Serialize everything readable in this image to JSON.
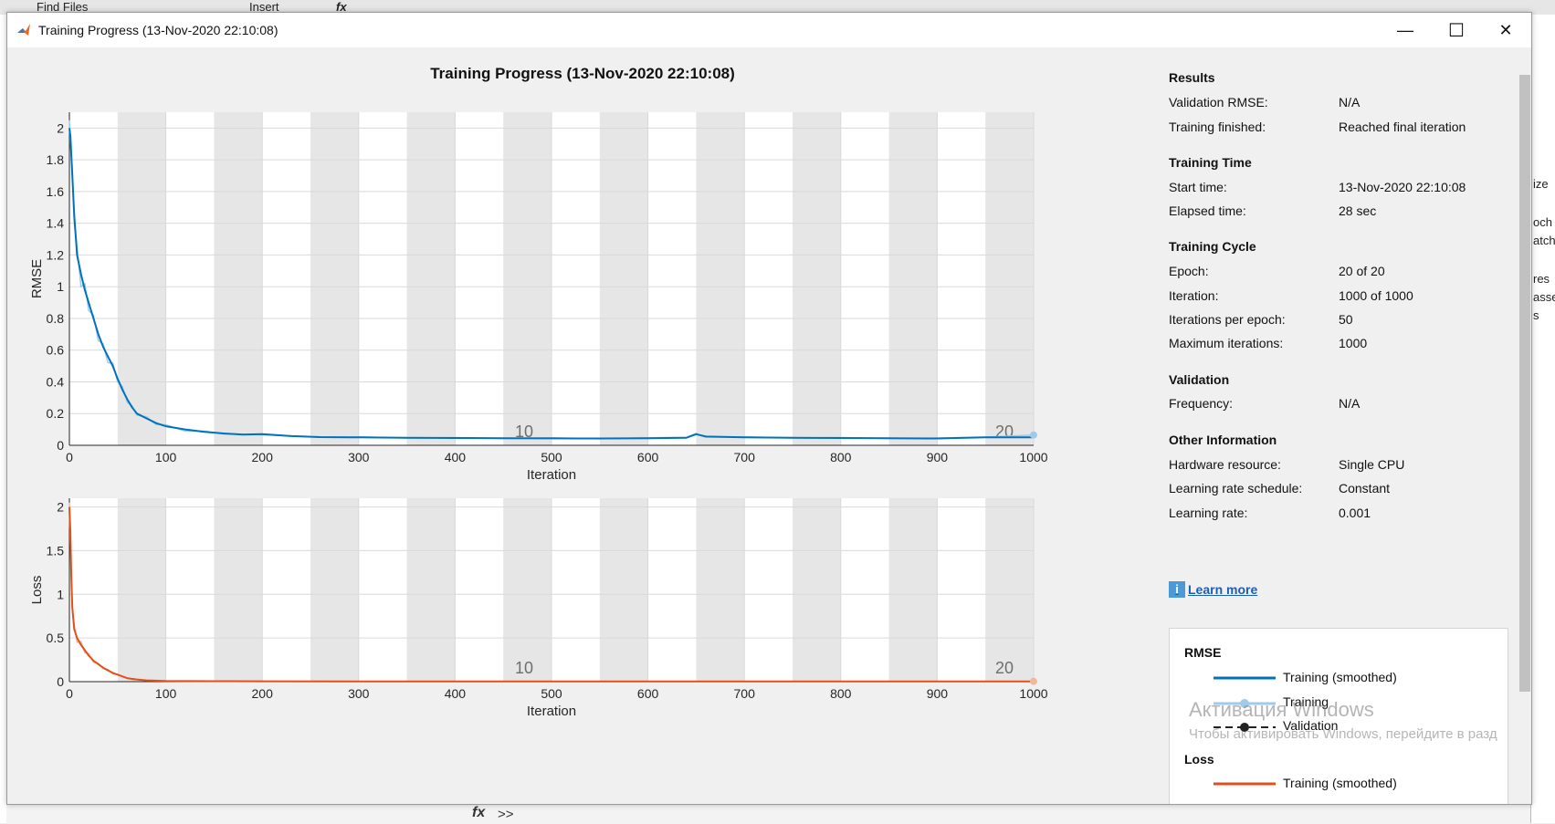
{
  "background": {
    "toolbar": {
      "find_files": "Find Files",
      "insert": "Insert",
      "fx": "fx"
    },
    "right_fragments": [
      "ize",
      "och",
      "atchS",
      "res",
      "asse",
      "s"
    ],
    "command_line": {
      "fx": "fx",
      "prompt": ">>"
    }
  },
  "window": {
    "title": "Training Progress (13-Nov-2020 22:10:08)",
    "controls": {
      "minimize": "—",
      "maximize": "☐",
      "close": "✕"
    }
  },
  "plot_title": "Training Progress (13-Nov-2020 22:10:08)",
  "colors": {
    "rmse_smoothed": "#0072bd",
    "rmse_raw": "#9fcbe8",
    "loss_smoothed": "#e1501b",
    "loss_raw": "#f3b79a",
    "epoch_shade": "#e6e6e6"
  },
  "chart_data": [
    {
      "type": "line",
      "name": "rmse-plot",
      "xlabel": "Iteration",
      "ylabel": "RMSE",
      "xlim": [
        0,
        1000
      ],
      "ylim": [
        0,
        2.1
      ],
      "xticks": [
        0,
        100,
        200,
        300,
        400,
        500,
        600,
        700,
        800,
        900,
        1000
      ],
      "yticks": [
        0,
        0.2,
        0.4,
        0.6,
        0.8,
        1,
        1.2,
        1.4,
        1.6,
        1.8,
        2
      ],
      "grid": true,
      "epoch_markers": [
        {
          "x": 500,
          "label": "10"
        },
        {
          "x": 1000,
          "label": "20"
        }
      ],
      "series": [
        {
          "name": "Training (smoothed)",
          "x": [
            0,
            1,
            3,
            5,
            8,
            12,
            16,
            20,
            25,
            30,
            35,
            40,
            45,
            50,
            55,
            60,
            65,
            70,
            80,
            90,
            100,
            120,
            140,
            160,
            180,
            200,
            230,
            260,
            300,
            350,
            400,
            450,
            500,
            550,
            600,
            640,
            650,
            660,
            700,
            750,
            800,
            850,
            900,
            950,
            1000
          ],
          "y": [
            2.0,
            1.95,
            1.7,
            1.45,
            1.2,
            1.08,
            0.98,
            0.9,
            0.8,
            0.7,
            0.62,
            0.56,
            0.5,
            0.42,
            0.35,
            0.29,
            0.24,
            0.2,
            0.17,
            0.14,
            0.12,
            0.1,
            0.085,
            0.075,
            0.068,
            0.07,
            0.058,
            0.052,
            0.05,
            0.048,
            0.046,
            0.045,
            0.044,
            0.043,
            0.045,
            0.048,
            0.07,
            0.055,
            0.05,
            0.048,
            0.046,
            0.045,
            0.043,
            0.05,
            0.05
          ]
        },
        {
          "name": "Training",
          "x": [
            0,
            1,
            3,
            5,
            8,
            12,
            16,
            20,
            25,
            30,
            35,
            40,
            45,
            50,
            55,
            60,
            65,
            70,
            80,
            90,
            100,
            120,
            140,
            160,
            180,
            200,
            230,
            260,
            300,
            350,
            400,
            450,
            500,
            550,
            600,
            640,
            650,
            660,
            700,
            750,
            800,
            850,
            900,
            950,
            1000
          ],
          "y": [
            2.05,
            1.9,
            1.75,
            1.4,
            1.25,
            1.0,
            1.02,
            0.85,
            0.82,
            0.66,
            0.64,
            0.52,
            0.52,
            0.4,
            0.37,
            0.27,
            0.25,
            0.19,
            0.18,
            0.13,
            0.13,
            0.09,
            0.09,
            0.07,
            0.07,
            0.066,
            0.06,
            0.05,
            0.053,
            0.046,
            0.049,
            0.043,
            0.047,
            0.041,
            0.048,
            0.05,
            0.075,
            0.052,
            0.053,
            0.046,
            0.049,
            0.043,
            0.046,
            0.052,
            0.065
          ]
        }
      ]
    },
    {
      "type": "line",
      "name": "loss-plot",
      "xlabel": "Iteration",
      "ylabel": "Loss",
      "xlim": [
        0,
        1000
      ],
      "ylim": [
        0,
        2.1
      ],
      "xticks": [
        0,
        100,
        200,
        300,
        400,
        500,
        600,
        700,
        800,
        900,
        1000
      ],
      "yticks": [
        0,
        0.5,
        1,
        1.5,
        2
      ],
      "grid": true,
      "epoch_markers": [
        {
          "x": 500,
          "label": "10"
        },
        {
          "x": 1000,
          "label": "20"
        }
      ],
      "series": [
        {
          "name": "Training (smoothed)",
          "x": [
            0,
            1,
            2,
            3,
            5,
            8,
            12,
            16,
            20,
            25,
            30,
            35,
            40,
            45,
            50,
            55,
            60,
            70,
            80,
            100,
            150,
            200,
            300,
            400,
            500,
            600,
            700,
            800,
            900,
            1000
          ],
          "y": [
            2.0,
            1.7,
            1.2,
            0.85,
            0.6,
            0.5,
            0.42,
            0.36,
            0.3,
            0.24,
            0.2,
            0.16,
            0.13,
            0.1,
            0.08,
            0.06,
            0.04,
            0.025,
            0.015,
            0.008,
            0.005,
            0.004,
            0.003,
            0.003,
            0.002,
            0.002,
            0.002,
            0.002,
            0.002,
            0.002
          ]
        },
        {
          "name": "Training",
          "x": [
            0,
            1,
            2,
            3,
            5,
            8,
            12,
            16,
            20,
            25,
            30,
            35,
            40,
            45,
            50,
            55,
            60,
            70,
            80,
            100,
            150,
            200,
            300,
            400,
            500,
            600,
            700,
            800,
            900,
            1000
          ],
          "y": [
            2.05,
            1.6,
            1.3,
            0.8,
            0.65,
            0.45,
            0.46,
            0.33,
            0.32,
            0.22,
            0.21,
            0.15,
            0.14,
            0.09,
            0.085,
            0.055,
            0.045,
            0.022,
            0.016,
            0.007,
            0.005,
            0.004,
            0.003,
            0.003,
            0.002,
            0.002,
            0.002,
            0.002,
            0.002,
            0.003
          ]
        }
      ]
    }
  ],
  "panel": {
    "results": {
      "heading": "Results",
      "validation_rmse_label": "Validation RMSE:",
      "validation_rmse_value": "N/A",
      "training_finished_label": "Training finished:",
      "training_finished_value": "Reached final iteration"
    },
    "training_time": {
      "heading": "Training Time",
      "start_label": "Start time:",
      "start_value": "13-Nov-2020 22:10:08",
      "elapsed_label": "Elapsed time:",
      "elapsed_value": "28 sec"
    },
    "training_cycle": {
      "heading": "Training Cycle",
      "epoch_label": "Epoch:",
      "epoch_value": "20 of 20",
      "iteration_label": "Iteration:",
      "iteration_value": "1000 of 1000",
      "ipe_label": "Iterations per epoch:",
      "ipe_value": "50",
      "max_label": "Maximum iterations:",
      "max_value": "1000"
    },
    "validation": {
      "heading": "Validation",
      "frequency_label": "Frequency:",
      "frequency_value": "N/A"
    },
    "other": {
      "heading": "Other Information",
      "hw_label": "Hardware resource:",
      "hw_value": "Single CPU",
      "lrs_label": "Learning rate schedule:",
      "lrs_value": "Constant",
      "lr_label": "Learning rate:",
      "lr_value": "0.001"
    },
    "learn_more": "Learn more",
    "legend": {
      "rmse_heading": "RMSE",
      "rmse_smoothed": "Training (smoothed)",
      "rmse_training": "Training",
      "rmse_validation": "Validation",
      "loss_heading": "Loss",
      "loss_smoothed": "Training (smoothed)"
    }
  },
  "watermark": {
    "line1": "Активация Windows",
    "line2": "Чтобы активировать Windows, перейдите в разд"
  }
}
